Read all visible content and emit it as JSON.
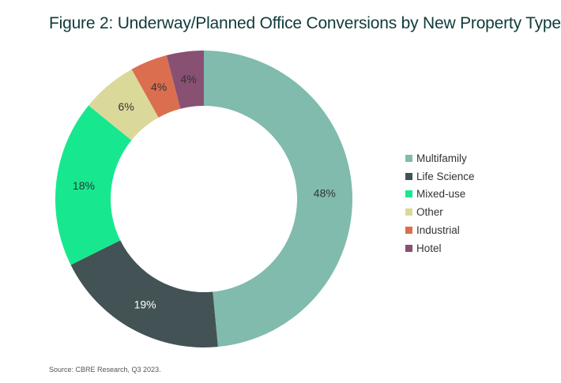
{
  "chart_data": {
    "type": "pie",
    "variant": "donut",
    "title": "Figure 2: Underway/Planned Office Conversions by New Property Type",
    "categories": [
      "Multifamily",
      "Life Science",
      "Mixed-use",
      "Other",
      "Industrial",
      "Hotel"
    ],
    "values": [
      48,
      19,
      18,
      6,
      4,
      4
    ],
    "labels": [
      "48%",
      "19%",
      "18%",
      "6%",
      "4%",
      "4%"
    ],
    "colors": [
      "#80bbad",
      "#435254",
      "#17e88f",
      "#dbd99a",
      "#db6e4f",
      "#885073"
    ],
    "legend_position": "right",
    "source": "Source: CBRE Research, Q3 2023."
  }
}
